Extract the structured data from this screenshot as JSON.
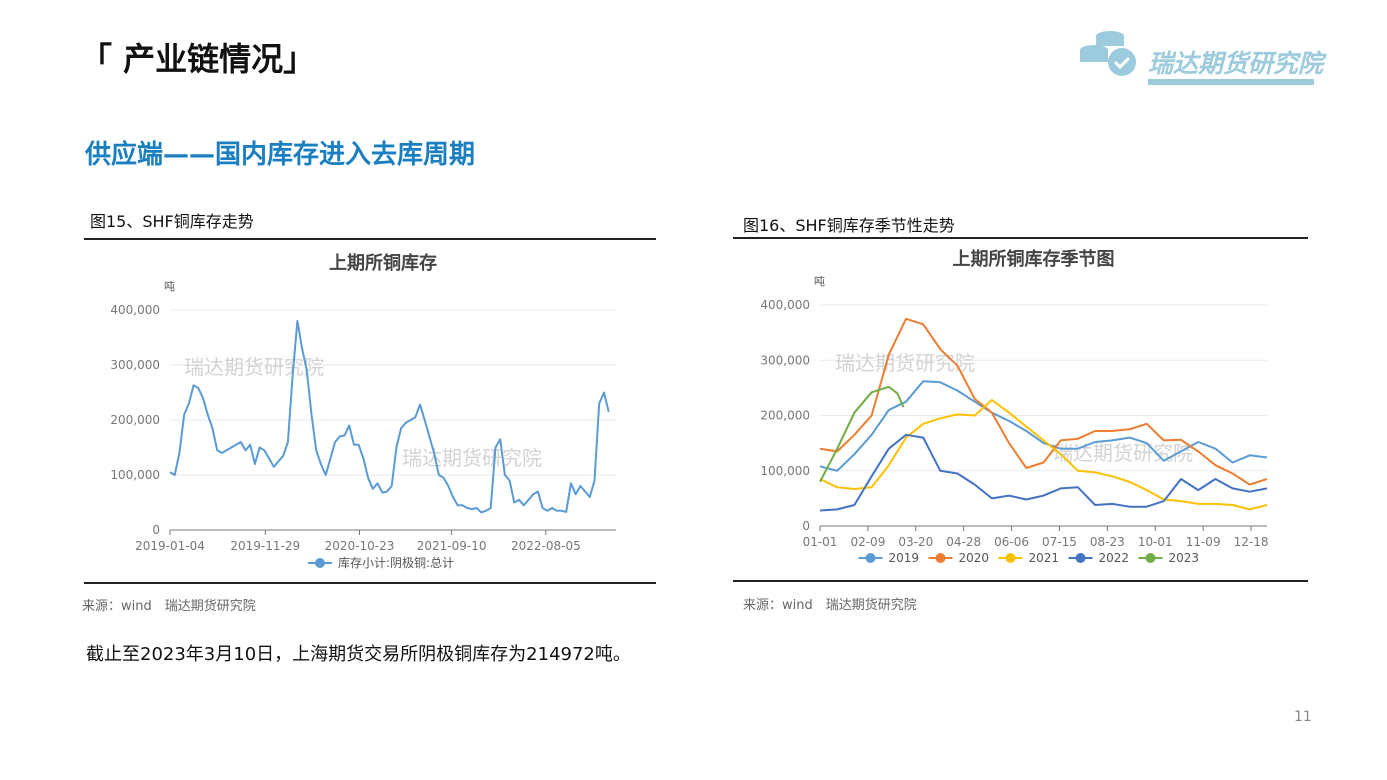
{
  "header": {
    "title": "「 产业链情况」",
    "logo_text": "瑞达期货研究院"
  },
  "subtitle": "供应端——国内库存进入去库周期",
  "figures": [
    {
      "caption": "图15、SHF铜库存走势",
      "source": "来源：wind　瑞达期货研究院"
    },
    {
      "caption": "图16、SHF铜库存季节性走势",
      "source": "来源：wind　瑞达期货研究院"
    }
  ],
  "note": "截止至2023年3月10日，上海期货交易所阴极铜库存为214972吨。",
  "page_number": "11",
  "watermark": "瑞达期货研究院",
  "chart_data": [
    {
      "type": "line",
      "title": "上期所铜库存",
      "ylabel": "吨",
      "ylim": [
        0,
        400000
      ],
      "yticks": [
        {
          "v": 0,
          "label": "0"
        },
        {
          "v": 100000,
          "label": "100,000"
        },
        {
          "v": 200000,
          "label": "200,000"
        },
        {
          "v": 300000,
          "label": "300,000"
        },
        {
          "v": 400000,
          "label": "400,000"
        }
      ],
      "x_unit": "decimal year",
      "xlim": [
        2019.0,
        2023.26
      ],
      "xticks": [
        {
          "v": 2019.0,
          "label": "2019-01-04"
        },
        {
          "v": 2019.91,
          "label": "2019-11-29"
        },
        {
          "v": 2020.81,
          "label": "2020-10-23"
        },
        {
          "v": 2021.69,
          "label": "2021-09-10"
        },
        {
          "v": 2022.59,
          "label": "2022-08-05"
        }
      ],
      "x_range": [
        2019.0,
        2023.19
      ],
      "legend": "bottom",
      "series": [
        {
          "name": "库存小计:阴极铜:总计",
          "color": "#5b9bd5",
          "values": [
            105000,
            100000,
            140000,
            210000,
            230000,
            263000,
            258000,
            240000,
            210000,
            185000,
            145000,
            140000,
            145000,
            150000,
            155000,
            160000,
            145000,
            155000,
            120000,
            150000,
            145000,
            130000,
            115000,
            125000,
            135000,
            160000,
            280000,
            380000,
            330000,
            290000,
            210000,
            145000,
            120000,
            100000,
            130000,
            160000,
            170000,
            172000,
            190000,
            155000,
            155000,
            130000,
            95000,
            75000,
            85000,
            68000,
            70000,
            80000,
            150000,
            185000,
            195000,
            200000,
            205000,
            228000,
            200000,
            170000,
            140000,
            100000,
            95000,
            80000,
            60000,
            45000,
            45000,
            40000,
            38000,
            40000,
            32000,
            35000,
            40000,
            150000,
            165000,
            100000,
            90000,
            50000,
            55000,
            45000,
            55000,
            65000,
            70000,
            40000,
            35000,
            40000,
            35000,
            35000,
            33000,
            85000,
            65000,
            80000,
            70000,
            60000,
            90000,
            230000,
            250000,
            215000
          ]
        }
      ]
    },
    {
      "type": "line",
      "title": "上期所铜库存季节图",
      "ylabel": "吨",
      "ylim": [
        0,
        400000
      ],
      "yticks": [
        {
          "v": 0,
          "label": "0"
        },
        {
          "v": 100000,
          "label": "100,000"
        },
        {
          "v": 200000,
          "label": "200,000"
        },
        {
          "v": 300000,
          "label": "300,000"
        },
        {
          "v": 400000,
          "label": "400,000"
        }
      ],
      "x_unit": "day of year",
      "xlim": [
        0,
        364
      ],
      "xticks": [
        {
          "v": 0,
          "label": "01-01"
        },
        {
          "v": 39,
          "label": "02-09"
        },
        {
          "v": 78,
          "label": "03-20"
        },
        {
          "v": 117,
          "label": "04-28"
        },
        {
          "v": 156,
          "label": "06-06"
        },
        {
          "v": 195,
          "label": "07-15"
        },
        {
          "v": 234,
          "label": "08-23"
        },
        {
          "v": 273,
          "label": "10-01"
        },
        {
          "v": 312,
          "label": "11-09"
        },
        {
          "v": 351,
          "label": "12-18"
        }
      ],
      "x": [
        0,
        14,
        28,
        42,
        56,
        70,
        84,
        98,
        112,
        126,
        140,
        154,
        168,
        182,
        196,
        210,
        224,
        238,
        252,
        266,
        280,
        294,
        308,
        322,
        336,
        350,
        364
      ],
      "legend": "bottom",
      "series": [
        {
          "name": "2019",
          "color": "#5b9bd5",
          "values": [
            108000,
            100000,
            130000,
            165000,
            210000,
            225000,
            262000,
            260000,
            245000,
            225000,
            205000,
            190000,
            172000,
            150000,
            140000,
            140000,
            152000,
            155000,
            160000,
            150000,
            118000,
            135000,
            152000,
            140000,
            115000,
            128000,
            124000
          ]
        },
        {
          "name": "2020",
          "color": "#ed7d31",
          "values": [
            140000,
            135000,
            165000,
            200000,
            310000,
            375000,
            365000,
            320000,
            290000,
            230000,
            205000,
            150000,
            105000,
            115000,
            155000,
            158000,
            172000,
            172000,
            175000,
            185000,
            155000,
            156000,
            135000,
            110000,
            95000,
            75000,
            85000
          ]
        },
        {
          "name": "2021",
          "color": "#ffc000",
          "values": [
            85000,
            70000,
            67000,
            70000,
            110000,
            160000,
            185000,
            195000,
            202000,
            200000,
            228000,
            205000,
            180000,
            155000,
            130000,
            100000,
            97000,
            90000,
            80000,
            65000,
            48000,
            45000,
            40000,
            40000,
            38000,
            30000,
            38000
          ]
        },
        {
          "name": "2022",
          "color": "#4472c4",
          "values": [
            28000,
            30000,
            38000,
            90000,
            140000,
            165000,
            160000,
            100000,
            95000,
            75000,
            50000,
            55000,
            48000,
            55000,
            68000,
            70000,
            38000,
            40000,
            35000,
            35000,
            45000,
            85000,
            65000,
            85000,
            68000,
            62000,
            68000
          ]
        },
        {
          "name": "2023",
          "color": "#70ad47",
          "x": [
            0,
            14,
            28,
            42,
            56,
            63,
            68
          ],
          "values": [
            80000,
            140000,
            205000,
            242000,
            252000,
            240000,
            215000
          ]
        }
      ]
    }
  ]
}
